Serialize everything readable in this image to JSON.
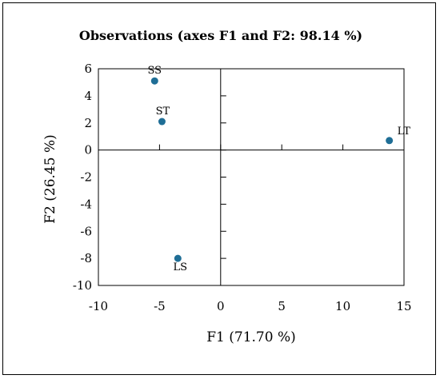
{
  "chart_data": {
    "type": "scatter",
    "title": "Observations (axes F1 and F2: 98.14 %)",
    "xlabel": "F1 (71.70 %)",
    "ylabel": "F2 (26.45 %)",
    "xlim": [
      -10,
      15
    ],
    "ylim": [
      -10,
      6
    ],
    "xticks": [
      -10,
      -5,
      0,
      5,
      10,
      15
    ],
    "yticks": [
      -10,
      -8,
      -6,
      -4,
      -2,
      0,
      2,
      4,
      6
    ],
    "xtick_labels": [
      "-10",
      "-5",
      "0",
      "5",
      "10",
      "15"
    ],
    "ytick_labels": [
      "-10",
      "-8",
      "-6",
      "-4",
      "-2",
      "0",
      "2",
      "4",
      "6"
    ],
    "point_color": "#1f6e96",
    "grid": false,
    "legend": "none",
    "points": [
      {
        "label": "SS",
        "x": -5.4,
        "y": 5.1
      },
      {
        "label": "ST",
        "x": -4.8,
        "y": 2.1
      },
      {
        "label": "LT",
        "x": 13.8,
        "y": 0.7
      },
      {
        "label": "LS",
        "x": -3.5,
        "y": -8.0
      }
    ]
  }
}
